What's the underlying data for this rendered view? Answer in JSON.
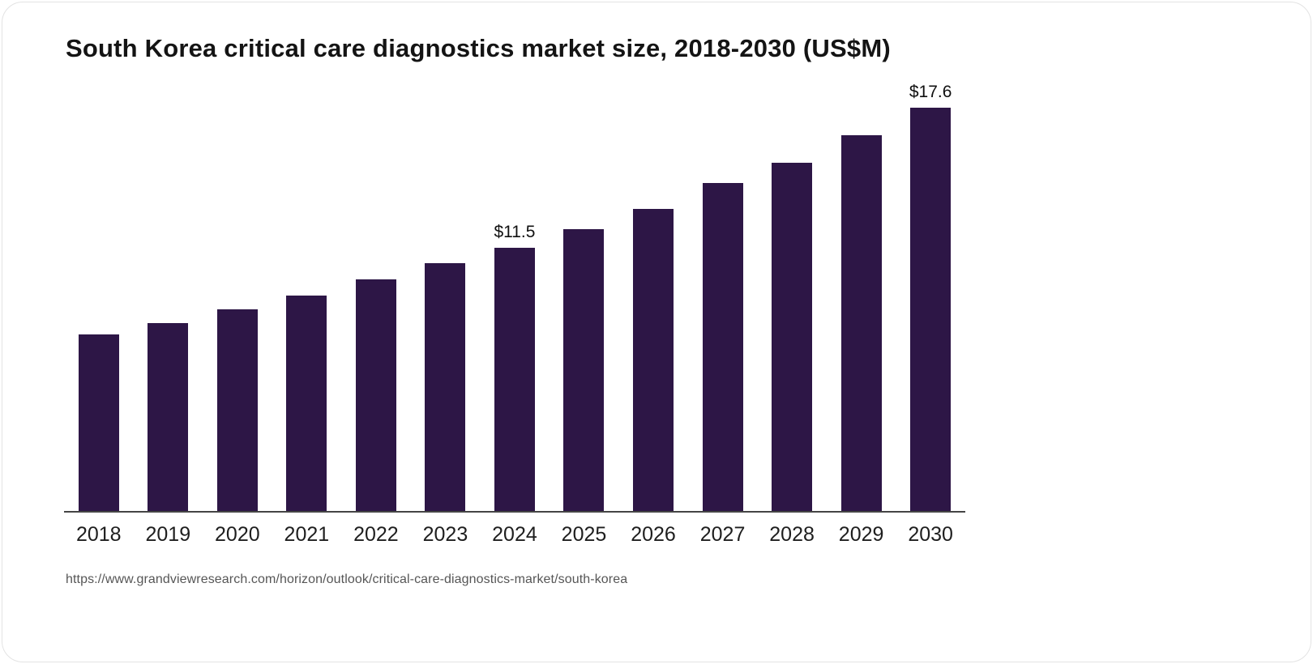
{
  "title": "South Korea critical care diagnostics market size, 2018-2030 (US$M)",
  "source_url": "https://www.grandviewresearch.com/horizon/outlook/critical-care-diagnostics-market/south-korea",
  "chart_data": {
    "type": "bar",
    "title": "South Korea critical care diagnostics market size, 2018-2030 (US$M)",
    "unit": "US$M",
    "categories": [
      "2018",
      "2019",
      "2020",
      "2021",
      "2022",
      "2023",
      "2024",
      "2025",
      "2026",
      "2027",
      "2028",
      "2029",
      "2030"
    ],
    "values": [
      7.7,
      8.2,
      8.8,
      9.4,
      10.1,
      10.8,
      11.5,
      12.3,
      13.2,
      14.3,
      15.2,
      16.4,
      17.6
    ],
    "data_labels": {
      "2024": "$11.5",
      "2030": "$17.6"
    },
    "bar_color": "#2d1646",
    "axis_color": "#454545",
    "ylim": [
      0,
      17.6
    ],
    "grid": false,
    "legend": false,
    "xlabel": "",
    "ylabel": ""
  }
}
